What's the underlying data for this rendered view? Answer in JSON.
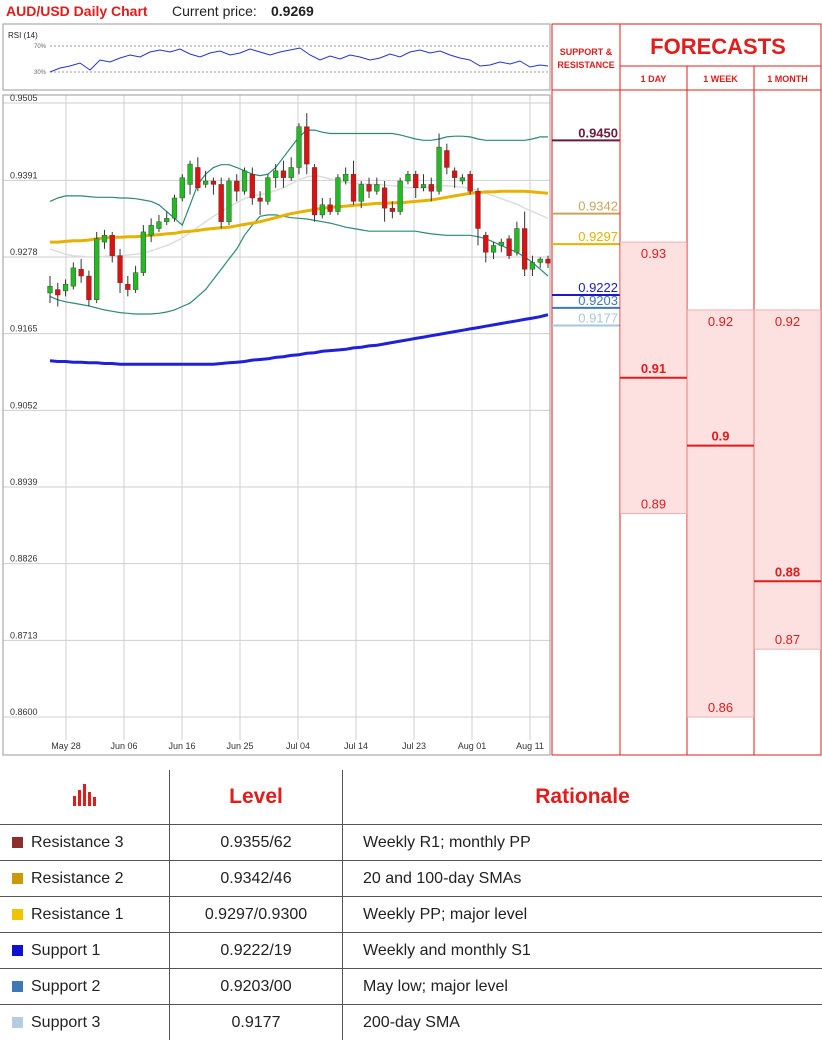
{
  "header": {
    "title": "AUD/USD Daily Chart",
    "price_label": "Current price:",
    "price_value": "0.9269"
  },
  "rsi": {
    "label": "RSI (14)",
    "levels": [
      "70%",
      "30%"
    ],
    "line_color": "#2233cc"
  },
  "chart_data": {
    "type": "line",
    "title": "AUD/USD Daily Chart",
    "yticks": [
      "0.9505",
      "0.9391",
      "0.9278",
      "0.9165",
      "0.9052",
      "0.8939",
      "0.8826",
      "0.8713",
      "0.8600"
    ],
    "ylim": [
      0.86,
      0.9505
    ],
    "xticks": [
      "May 28",
      "Jun 06",
      "Jun 16",
      "Jun 25",
      "Jul 04",
      "Jul 14",
      "Jul 23",
      "Aug 01",
      "Aug 11"
    ],
    "candles": [
      {
        "o": 0.9225,
        "c": 0.9235,
        "h": 0.925,
        "l": 0.921
      },
      {
        "o": 0.923,
        "c": 0.9222,
        "h": 0.924,
        "l": 0.9205
      },
      {
        "o": 0.9228,
        "c": 0.9238,
        "h": 0.9245,
        "l": 0.922
      },
      {
        "o": 0.9235,
        "c": 0.9262,
        "h": 0.927,
        "l": 0.923
      },
      {
        "o": 0.926,
        "c": 0.925,
        "h": 0.9275,
        "l": 0.924
      },
      {
        "o": 0.925,
        "c": 0.9215,
        "h": 0.9258,
        "l": 0.9205
      },
      {
        "o": 0.9215,
        "c": 0.9305,
        "h": 0.9315,
        "l": 0.921
      },
      {
        "o": 0.93,
        "c": 0.931,
        "h": 0.9318,
        "l": 0.929
      },
      {
        "o": 0.931,
        "c": 0.928,
        "h": 0.9315,
        "l": 0.927
      },
      {
        "o": 0.928,
        "c": 0.924,
        "h": 0.929,
        "l": 0.9225
      },
      {
        "o": 0.9238,
        "c": 0.923,
        "h": 0.925,
        "l": 0.922
      },
      {
        "o": 0.923,
        "c": 0.9255,
        "h": 0.9265,
        "l": 0.9225
      },
      {
        "o": 0.9255,
        "c": 0.9315,
        "h": 0.9325,
        "l": 0.925
      },
      {
        "o": 0.931,
        "c": 0.9325,
        "h": 0.9335,
        "l": 0.93
      },
      {
        "o": 0.932,
        "c": 0.933,
        "h": 0.934,
        "l": 0.9315
      },
      {
        "o": 0.933,
        "c": 0.9335,
        "h": 0.9345,
        "l": 0.9325
      },
      {
        "o": 0.9335,
        "c": 0.9365,
        "h": 0.937,
        "l": 0.933
      },
      {
        "o": 0.9365,
        "c": 0.9395,
        "h": 0.94,
        "l": 0.936
      },
      {
        "o": 0.9385,
        "c": 0.9415,
        "h": 0.942,
        "l": 0.937
      },
      {
        "o": 0.941,
        "c": 0.938,
        "h": 0.9425,
        "l": 0.9375
      },
      {
        "o": 0.9385,
        "c": 0.939,
        "h": 0.9405,
        "l": 0.938
      },
      {
        "o": 0.939,
        "c": 0.9385,
        "h": 0.9395,
        "l": 0.937
      },
      {
        "o": 0.9385,
        "c": 0.933,
        "h": 0.9395,
        "l": 0.932
      },
      {
        "o": 0.933,
        "c": 0.939,
        "h": 0.9395,
        "l": 0.9325
      },
      {
        "o": 0.939,
        "c": 0.9375,
        "h": 0.94,
        "l": 0.936
      },
      {
        "o": 0.9375,
        "c": 0.9405,
        "h": 0.941,
        "l": 0.937
      },
      {
        "o": 0.94,
        "c": 0.9365,
        "h": 0.941,
        "l": 0.9355
      },
      {
        "o": 0.9365,
        "c": 0.936,
        "h": 0.9375,
        "l": 0.934
      },
      {
        "o": 0.936,
        "c": 0.9395,
        "h": 0.94,
        "l": 0.9355
      },
      {
        "o": 0.9395,
        "c": 0.9405,
        "h": 0.9415,
        "l": 0.938
      },
      {
        "o": 0.9405,
        "c": 0.9395,
        "h": 0.942,
        "l": 0.938
      },
      {
        "o": 0.9395,
        "c": 0.941,
        "h": 0.9425,
        "l": 0.939
      },
      {
        "o": 0.941,
        "c": 0.947,
        "h": 0.9475,
        "l": 0.94
      },
      {
        "o": 0.947,
        "c": 0.9415,
        "h": 0.949,
        "l": 0.94
      },
      {
        "o": 0.941,
        "c": 0.934,
        "h": 0.9415,
        "l": 0.933
      },
      {
        "o": 0.934,
        "c": 0.9355,
        "h": 0.9365,
        "l": 0.9335
      },
      {
        "o": 0.9355,
        "c": 0.9345,
        "h": 0.9365,
        "l": 0.934
      },
      {
        "o": 0.9345,
        "c": 0.9395,
        "h": 0.94,
        "l": 0.934
      },
      {
        "o": 0.939,
        "c": 0.94,
        "h": 0.941,
        "l": 0.9385
      },
      {
        "o": 0.94,
        "c": 0.936,
        "h": 0.942,
        "l": 0.9355
      },
      {
        "o": 0.936,
        "c": 0.9385,
        "h": 0.939,
        "l": 0.935
      },
      {
        "o": 0.9385,
        "c": 0.9375,
        "h": 0.9395,
        "l": 0.9365
      },
      {
        "o": 0.9375,
        "c": 0.9385,
        "h": 0.9395,
        "l": 0.937
      },
      {
        "o": 0.938,
        "c": 0.935,
        "h": 0.939,
        "l": 0.933
      },
      {
        "o": 0.935,
        "c": 0.9345,
        "h": 0.936,
        "l": 0.9335
      },
      {
        "o": 0.9345,
        "c": 0.939,
        "h": 0.9395,
        "l": 0.934
      },
      {
        "o": 0.939,
        "c": 0.94,
        "h": 0.9405,
        "l": 0.9385
      },
      {
        "o": 0.94,
        "c": 0.938,
        "h": 0.9405,
        "l": 0.9365
      },
      {
        "o": 0.938,
        "c": 0.9385,
        "h": 0.94,
        "l": 0.9375
      },
      {
        "o": 0.9385,
        "c": 0.9375,
        "h": 0.9395,
        "l": 0.936
      },
      {
        "o": 0.9375,
        "c": 0.944,
        "h": 0.946,
        "l": 0.937
      },
      {
        "o": 0.9435,
        "c": 0.941,
        "h": 0.9445,
        "l": 0.94
      },
      {
        "o": 0.9405,
        "c": 0.9395,
        "h": 0.941,
        "l": 0.938
      },
      {
        "o": 0.939,
        "c": 0.9395,
        "h": 0.94,
        "l": 0.9385
      },
      {
        "o": 0.94,
        "c": 0.9375,
        "h": 0.9405,
        "l": 0.937
      },
      {
        "o": 0.9375,
        "c": 0.932,
        "h": 0.938,
        "l": 0.9295
      },
      {
        "o": 0.931,
        "c": 0.9285,
        "h": 0.9315,
        "l": 0.927
      },
      {
        "o": 0.9285,
        "c": 0.9295,
        "h": 0.93,
        "l": 0.9275
      },
      {
        "o": 0.9295,
        "c": 0.93,
        "h": 0.9305,
        "l": 0.9285
      },
      {
        "o": 0.9305,
        "c": 0.928,
        "h": 0.931,
        "l": 0.9275
      },
      {
        "o": 0.9285,
        "c": 0.932,
        "h": 0.933,
        "l": 0.928
      },
      {
        "o": 0.932,
        "c": 0.926,
        "h": 0.9345,
        "l": 0.925
      },
      {
        "o": 0.926,
        "c": 0.927,
        "h": 0.928,
        "l": 0.925
      },
      {
        "o": 0.927,
        "c": 0.9275,
        "h": 0.9278,
        "l": 0.9262
      },
      {
        "o": 0.9275,
        "c": 0.9269,
        "h": 0.928,
        "l": 0.9262
      }
    ],
    "series": [
      {
        "color": "#e8b100",
        "values": [
          0.93,
          0.93,
          0.9301,
          0.9302,
          0.9302,
          0.9303,
          0.9305,
          0.9306,
          0.9307,
          0.9307,
          0.9308,
          0.9308,
          0.9309,
          0.931,
          0.9311,
          0.9312,
          0.9313,
          0.9315,
          0.9316,
          0.9317,
          0.9319,
          0.932,
          0.9321,
          0.9322,
          0.9324,
          0.9326,
          0.9328,
          0.933,
          0.9333,
          0.9336,
          0.9339,
          0.9342,
          0.9344,
          0.9346,
          0.9348,
          0.935,
          0.9351,
          0.9352,
          0.9353,
          0.9354,
          0.9355,
          0.9356,
          0.9357,
          0.9357,
          0.9358,
          0.9358,
          0.9359,
          0.936,
          0.9361,
          0.9362,
          0.9364,
          0.9366,
          0.9368,
          0.937,
          0.9372,
          0.9373,
          0.9374,
          0.9374,
          0.9375,
          0.9375,
          0.9375,
          0.9375,
          0.9374,
          0.9373,
          0.9372
        ]
      },
      {
        "color": "#2020d8",
        "values": [
          0.9125,
          0.9124,
          0.9124,
          0.9123,
          0.9123,
          0.9122,
          0.9122,
          0.9121,
          0.9121,
          0.912,
          0.912,
          0.912,
          0.912,
          0.912,
          0.912,
          0.912,
          0.912,
          0.912,
          0.912,
          0.912,
          0.912,
          0.912,
          0.9121,
          0.9122,
          0.9123,
          0.9124,
          0.9126,
          0.9127,
          0.9128,
          0.913,
          0.9131,
          0.9133,
          0.9134,
          0.9136,
          0.9137,
          0.9139,
          0.914,
          0.9141,
          0.9142,
          0.9144,
          0.9145,
          0.9147,
          0.9148,
          0.915,
          0.9152,
          0.9154,
          0.9156,
          0.9158,
          0.916,
          0.9162,
          0.9164,
          0.9166,
          0.9168,
          0.917,
          0.9172,
          0.9174,
          0.9176,
          0.9178,
          0.918,
          0.9182,
          0.9184,
          0.9186,
          0.9188,
          0.919,
          0.9193
        ]
      },
      {
        "color": "#2a8b74",
        "values": [
          0.936,
          0.9365,
          0.9368,
          0.9368,
          0.9368,
          0.9367,
          0.9366,
          0.9366,
          0.9366,
          0.9365,
          0.9365,
          0.9364,
          0.9362,
          0.936,
          0.9355,
          0.9345,
          0.9335,
          0.9325,
          0.9355,
          0.9385,
          0.94,
          0.941,
          0.9414,
          0.9414,
          0.941,
          0.9405,
          0.94,
          0.9398,
          0.94,
          0.941,
          0.9425,
          0.944,
          0.9455,
          0.9465,
          0.9465,
          0.9462,
          0.946,
          0.946,
          0.946,
          0.946,
          0.946,
          0.946,
          0.946,
          0.946,
          0.946,
          0.9458,
          0.9455,
          0.9452,
          0.945,
          0.945,
          0.9452,
          0.9455,
          0.9456,
          0.9456,
          0.9455,
          0.9452,
          0.945,
          0.945,
          0.945,
          0.945,
          0.945,
          0.945,
          0.9452,
          0.9455,
          0.9455
        ]
      },
      {
        "color": "#2a8b74",
        "values": [
          0.922,
          0.9215,
          0.9212,
          0.921,
          0.9208,
          0.9206,
          0.9203,
          0.92,
          0.9198,
          0.9196,
          0.9195,
          0.9194,
          0.9194,
          0.9194,
          0.9195,
          0.9197,
          0.92,
          0.9205,
          0.921,
          0.922,
          0.923,
          0.9245,
          0.926,
          0.9275,
          0.929,
          0.931,
          0.9325,
          0.9338,
          0.934,
          0.934,
          0.9338,
          0.9336,
          0.9335,
          0.9334,
          0.9332,
          0.933,
          0.9328,
          0.9325,
          0.9322,
          0.932,
          0.9318,
          0.9316,
          0.9316,
          0.9316,
          0.9316,
          0.9316,
          0.9316,
          0.9316,
          0.9314,
          0.9312,
          0.9311,
          0.931,
          0.931,
          0.931,
          0.931,
          0.9308,
          0.9305,
          0.93,
          0.9295,
          0.929,
          0.9285,
          0.9278,
          0.927,
          0.926,
          0.925
        ]
      },
      {
        "color": "#dddddd",
        "values": [
          0.929,
          0.9286,
          0.9282,
          0.928,
          0.9279,
          0.9278,
          0.9278,
          0.9279,
          0.928,
          0.928,
          0.9281,
          0.9282,
          0.9284,
          0.9287,
          0.9291,
          0.9295,
          0.93,
          0.9306,
          0.9314,
          0.9322,
          0.933,
          0.9338,
          0.9345,
          0.9352,
          0.9358,
          0.9364,
          0.9368,
          0.937,
          0.9372,
          0.9376,
          0.938,
          0.9386,
          0.9392,
          0.9396,
          0.9398,
          0.9396,
          0.9393,
          0.939,
          0.9388,
          0.9387,
          0.9386,
          0.9385,
          0.9385,
          0.9384,
          0.9383,
          0.9382,
          0.938,
          0.938,
          0.938,
          0.9381,
          0.9382,
          0.9383,
          0.9382,
          0.9381,
          0.9379,
          0.9376,
          0.9372,
          0.9368,
          0.9364,
          0.936,
          0.9356,
          0.935,
          0.9345,
          0.934,
          0.9335
        ]
      }
    ]
  },
  "sr": {
    "header": "SUPPORT & RESISTANCE",
    "levels": [
      {
        "value": "0.9450",
        "color": "#6b1b3a"
      },
      {
        "value": "0.9342",
        "color": "#c9a460"
      },
      {
        "value": "0.9297",
        "color": "#e8b100"
      },
      {
        "value": "0.9222",
        "color": "#1a1acc"
      },
      {
        "value": "0.9203",
        "color": "#3f78b8"
      },
      {
        "value": "0.9177",
        "color": "#a7c6dc"
      }
    ]
  },
  "forecasts": {
    "title": "FORECASTS",
    "columns": [
      {
        "label": "1 DAY",
        "high": "0.93",
        "mid": "0.91",
        "low": "0.89",
        "high_v": 0.93,
        "mid_v": 0.91,
        "low_v": 0.89
      },
      {
        "label": "1 WEEK",
        "high": "0.92",
        "mid": "0.9",
        "low": "0.86",
        "high_v": 0.92,
        "mid_v": 0.9,
        "low_v": 0.86
      },
      {
        "label": "1 MONTH",
        "high": "0.92",
        "mid": "0.88",
        "low": "0.87",
        "high_v": 0.92,
        "mid_v": 0.88,
        "low_v": 0.87
      }
    ],
    "color": "#e21b1b"
  },
  "table": {
    "headers": {
      "level": "Level",
      "rationale": "Rationale"
    },
    "rows": [
      {
        "name": "Resistance 3",
        "level": "0.9355/62",
        "rationale": "Weekly R1; monthly PP",
        "color": "#8b2e2e"
      },
      {
        "name": "Resistance 2",
        "level": "0.9342/46",
        "rationale": "20 and 100-day SMAs",
        "color": "#cc9a08"
      },
      {
        "name": "Resistance 1",
        "level": "0.9297/0.9300",
        "rationale": "Weekly PP; major level",
        "color": "#f2c400"
      },
      {
        "name": "Support 1",
        "level": "0.9222/19",
        "rationale": "Weekly and monthly S1",
        "color": "#1010d0"
      },
      {
        "name": "Support 2",
        "level": "0.9203/00",
        "rationale": "May low; major level",
        "color": "#3f78b8"
      },
      {
        "name": "Support 3",
        "level": "0.9177",
        "rationale": "200-day SMA",
        "color": "#b5cce2"
      }
    ]
  }
}
